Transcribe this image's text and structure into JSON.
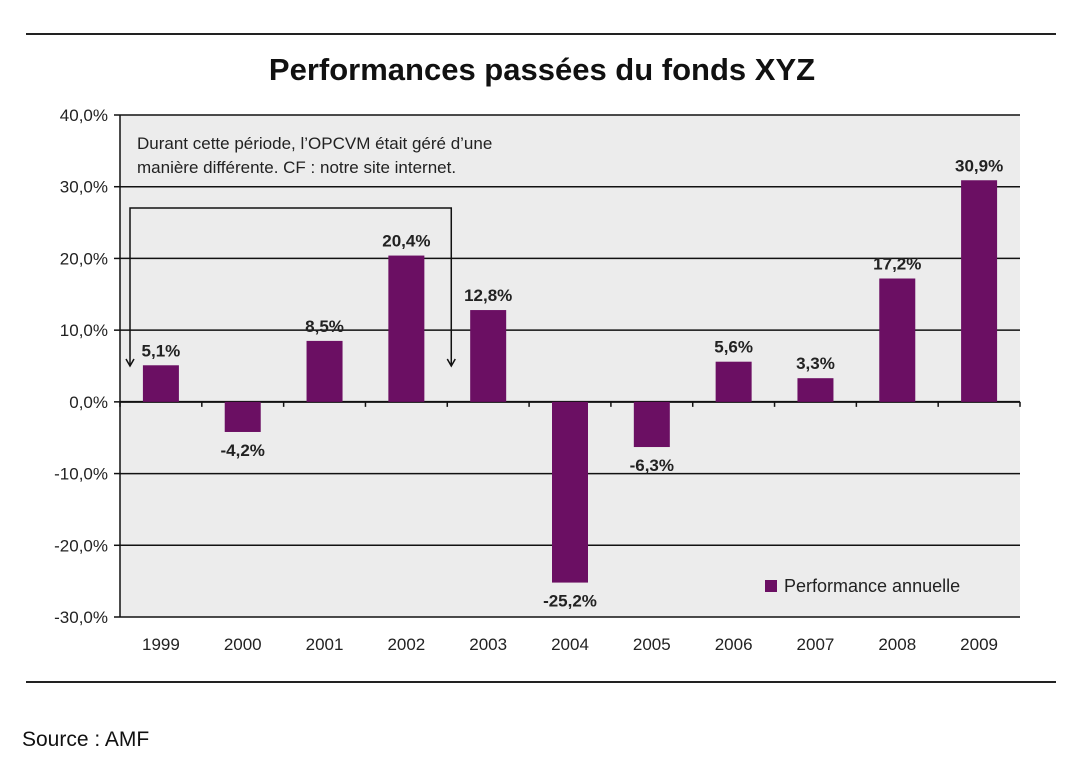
{
  "chart_data": {
    "type": "bar",
    "title": "Performances passées du fonds XYZ",
    "categories": [
      "1999",
      "2000",
      "2001",
      "2002",
      "2003",
      "2004",
      "2005",
      "2006",
      "2007",
      "2008",
      "2009"
    ],
    "series": [
      {
        "name": "Performance annuelle",
        "color": "#6b0f63",
        "values": [
          5.1,
          -4.2,
          8.5,
          20.4,
          12.8,
          -25.2,
          -6.3,
          5.6,
          3.3,
          17.2,
          30.9
        ],
        "labels": [
          "5,1%",
          "-4,2%",
          "8,5%",
          "20,4%",
          "12,8%",
          "-25,2%",
          "-6,3%",
          "5,6%",
          "3,3%",
          "17,2%",
          "30,9%"
        ]
      }
    ],
    "ylim": [
      -30,
      40
    ],
    "yticks": [
      40,
      30,
      20,
      10,
      0,
      -10,
      -20,
      -30
    ],
    "ytick_labels": [
      "40,0%",
      "30,0%",
      "20,0%",
      "10,0%",
      "0,0%",
      "-10,0%",
      "-20,0%",
      "-30,0%"
    ],
    "grid": true,
    "plot_background": "#ececec",
    "legend_position": "bottom-right",
    "annotation": {
      "lines": [
        "Durant cette période, l’OPCVM était géré d’une",
        "manière différente. CF : notre site internet."
      ],
      "bracket_from": "1999",
      "bracket_to": "2002"
    }
  },
  "source": "Source : AMF"
}
